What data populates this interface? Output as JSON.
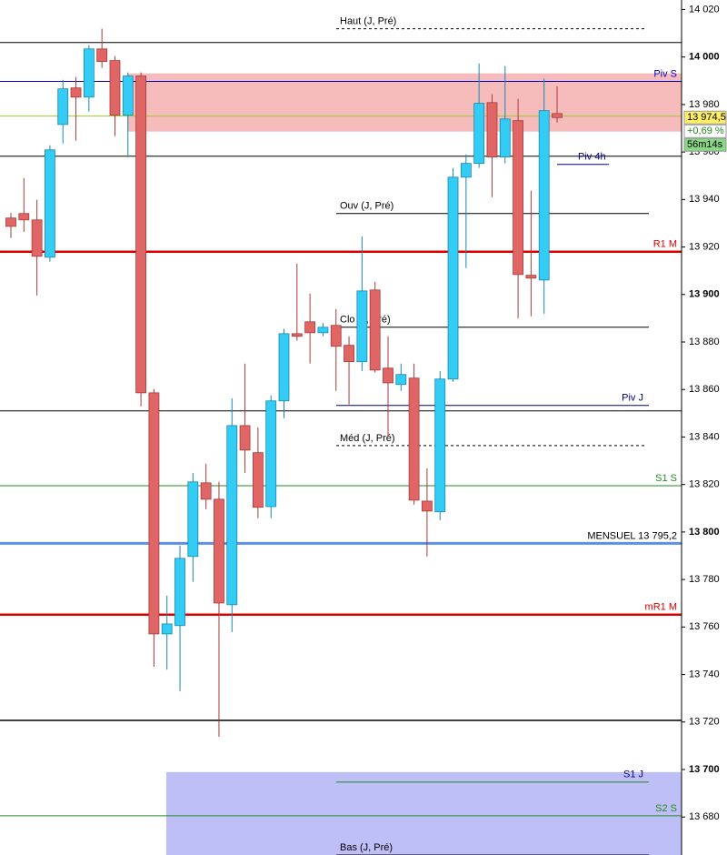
{
  "chart_data": {
    "type": "candlestick",
    "ylim": [
      13664,
      14024
    ],
    "yticks": [
      {
        "value": 14020,
        "label": "14 020"
      },
      {
        "value": 14000,
        "label": "14 000"
      },
      {
        "value": 13980,
        "label": "13 980"
      },
      {
        "value": 13960,
        "label": "13 960"
      },
      {
        "value": 13940,
        "label": "13 940"
      },
      {
        "value": 13920,
        "label": "13 920"
      },
      {
        "value": 13900,
        "label": "13 900"
      },
      {
        "value": 13880,
        "label": "13 880"
      },
      {
        "value": 13860,
        "label": "13 860"
      },
      {
        "value": 13840,
        "label": "13 840"
      },
      {
        "value": 13820,
        "label": "13 820"
      },
      {
        "value": 13800,
        "label": "13 800"
      },
      {
        "value": 13780,
        "label": "13 780"
      },
      {
        "value": 13760,
        "label": "13 760"
      },
      {
        "value": 13740,
        "label": "13 740"
      },
      {
        "value": 13720,
        "label": "13 720"
      },
      {
        "value": 13700,
        "label": "13 700"
      },
      {
        "value": 13680,
        "label": "13 680"
      }
    ],
    "up_color": "#33ccf5",
    "down_color": "#e06666",
    "open": [
      13932.2,
      13934.1,
      13931.4,
      13915.7,
      13971.6,
      13987,
      13983.1,
      14003.4,
      13998.5,
      13975.5,
      13992,
      13858.6,
      13757.1,
      13760.6,
      13789.7,
      13820.7,
      13813.8,
      13769.4,
      13844.8,
      13833.4,
      13810.7,
      13855.2,
      13883.5,
      13888.5,
      13883.9,
      13887,
      13878.6,
      13871.7,
      13901.9,
      13869,
      13862.1,
      13864.8,
      13813,
      13808.5,
      13864.4,
      13949.4,
      13955.2,
      13980.8,
      13957.9,
      13973.2,
      13908.1,
      13906.1,
      13976.2
    ],
    "high": [
      13934.5,
      13949,
      13939.9,
      13962.8,
      13990.4,
      13991.6,
      14005,
      14011.9,
      14000.4,
      13993.5,
      13993.5,
      13860.2,
      13773.2,
      13794.3,
      13824.9,
      13828.8,
      13821.1,
      13856.3,
      13870.9,
      13844.1,
      13857.5,
      13885.5,
      13913,
      13900.4,
      13888.1,
      13893.9,
      13882.4,
      13924.5,
      13905.4,
      13882.4,
      13870.9,
      13870.9,
      13826.8,
      13867.8,
      13953.3,
      13959,
      13997.3,
      13984.3,
      13996.2,
      13982.4,
      13943.7,
      13990.8,
      13987.7
    ],
    "low": [
      13923.8,
      13926.4,
      13899.6,
      13913.8,
      13963.6,
      13964.8,
      13977,
      13995.4,
      13966.7,
      13957.9,
      13852.9,
      13743.3,
      13742,
      13733,
      13779,
      13809.6,
      13713.8,
      13757.9,
      13824.9,
      13805.8,
      13805.8,
      13847.9,
      13880.5,
      13870.9,
      13882.4,
      13859.4,
      13853.7,
      13867.8,
      13867.1,
      13840.2,
      13859.4,
      13811.5,
      13789.7,
      13805,
      13863.2,
      13911.1,
      13953.3,
      13941,
      13955.2,
      13890,
      13890.8,
      13891.9,
      13972.4
    ],
    "close": [
      13928.7,
      13931.4,
      13916.1,
      13960.9,
      13986.6,
      13983.1,
      14003.4,
      13998.1,
      13975.5,
      13992,
      13858.6,
      13757.1,
      13761.3,
      13788.9,
      13821.1,
      13813.8,
      13770.1,
      13844.8,
      13834.5,
      13810.4,
      13855.2,
      13883.5,
      13882.4,
      13883.9,
      13886.2,
      13878.2,
      13871.7,
      13901.5,
      13868.2,
      13862.8,
      13866.3,
      13813.4,
      13808.8,
      13864.4,
      13949.4,
      13955.2,
      13980.5,
      13957.9,
      13973.9,
      13908.4,
      13906.9,
      13977.4,
      13974.5
    ],
    "zones": [
      {
        "from": 13968.6,
        "to": 13993.1,
        "color": "#f6b8b8"
      },
      {
        "from": 13664,
        "to": 13698.9,
        "color": "#bcbcf8"
      }
    ],
    "levels": [
      {
        "label": "Haut (J, Pré)",
        "value": 14011.9,
        "color": "#000000",
        "dashed": true
      },
      {
        "value": 14006.1,
        "color": "#000000"
      },
      {
        "label": "Piv S",
        "value": 13989.7,
        "color": "#0000cc"
      },
      {
        "value": 13975.1,
        "color": "#99cc33"
      },
      {
        "value": 13958.2,
        "color": "#000000"
      },
      {
        "label": "Piv 4h",
        "value": 13954.8,
        "color": "#000080"
      },
      {
        "label": "Ouv (J, Pré)",
        "value": 13934.1,
        "color": "#000000"
      },
      {
        "label": "R1 M",
        "value": 13918,
        "color": "#dd0000"
      },
      {
        "label": "Clo (J, Pré)",
        "value": 13886.2,
        "color": "#000000"
      },
      {
        "label": "Piv J",
        "value": 13853.3,
        "color": "#000080"
      },
      {
        "value": 13851,
        "color": "#000000"
      },
      {
        "label": "Méd (J, Pré)",
        "value": 13836.4,
        "color": "#000000",
        "dashed": true
      },
      {
        "label": "S1 S",
        "value": 13819.5,
        "color": "#228b22"
      },
      {
        "label": "MENSUEL 13 795,2",
        "value": 13795.2,
        "color": "#5b8fe8",
        "label_color": "#000000"
      },
      {
        "label": "mR1 M",
        "value": 13765.2,
        "color": "#dd0000"
      },
      {
        "value": 13720.7,
        "color": "#000000"
      },
      {
        "label": "S1 J",
        "value": 13694.7,
        "color": "#228b22",
        "label_color": "#000080"
      },
      {
        "label": "S2 S",
        "value": 13680.5,
        "color": "#228b22"
      },
      {
        "label": "Bas (J, Pré)",
        "value": 13664,
        "color": "#000000"
      }
    ],
    "last_price": {
      "value": 13974.5,
      "label": "13 974,5"
    },
    "change_label": "+0,69 %",
    "timer": "56m14s"
  }
}
